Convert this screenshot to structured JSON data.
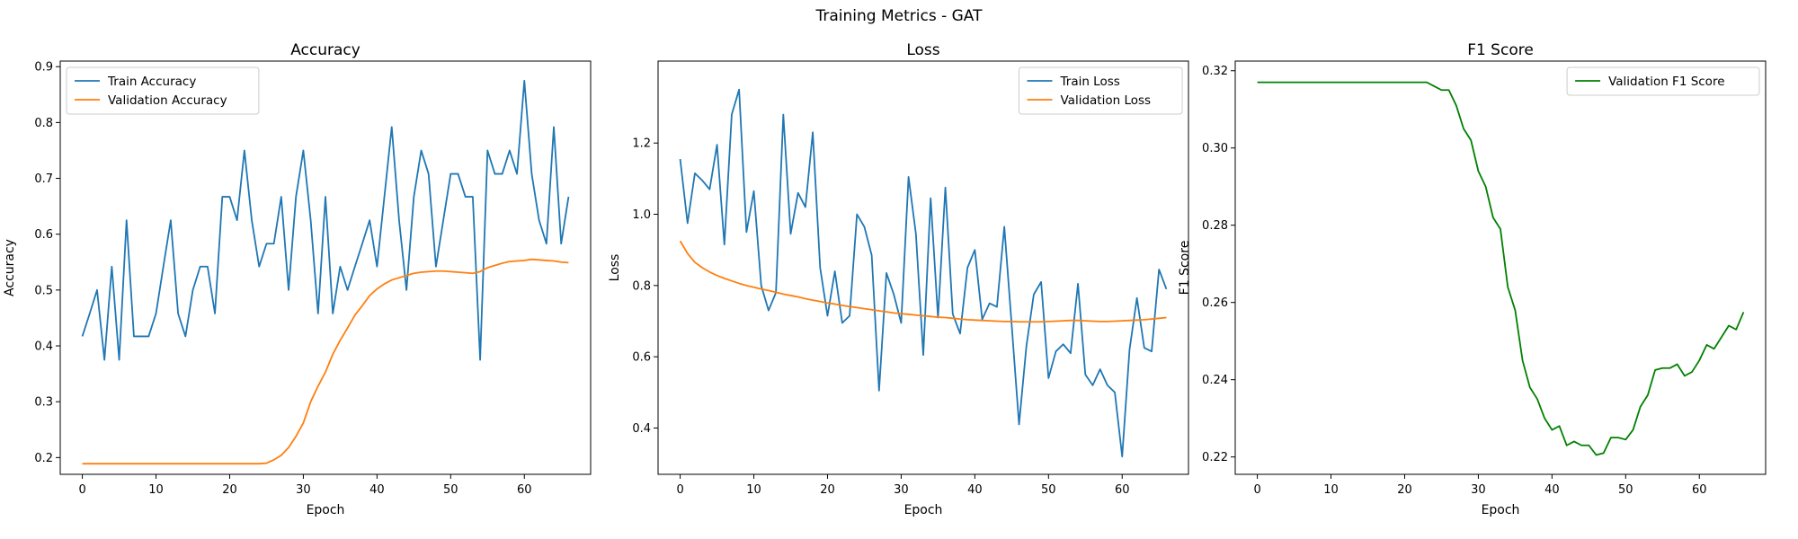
{
  "figure_title": "Training Metrics - GAT",
  "chart_data": [
    {
      "type": "line",
      "title": "Accuracy",
      "xlabel": "Epoch",
      "ylabel": "Accuracy",
      "xlim": [
        -3,
        69
      ],
      "ylim": [
        0.17,
        0.91
      ],
      "xticks": [
        0,
        10,
        20,
        30,
        40,
        50,
        60
      ],
      "yticks": [
        0.2,
        0.3,
        0.4,
        0.5,
        0.6,
        0.7,
        0.8,
        0.9
      ],
      "legend_position": "upper-left",
      "grid": false,
      "series": [
        {
          "name": "Train Accuracy",
          "color": "#1f77b4",
          "x": [
            0,
            1,
            2,
            3,
            4,
            5,
            6,
            7,
            8,
            9,
            10,
            11,
            12,
            13,
            14,
            15,
            16,
            17,
            18,
            19,
            20,
            21,
            22,
            23,
            24,
            25,
            26,
            27,
            28,
            29,
            30,
            31,
            32,
            33,
            34,
            35,
            36,
            37,
            38,
            39,
            40,
            41,
            42,
            43,
            44,
            45,
            46,
            47,
            48,
            49,
            50,
            51,
            52,
            53,
            54,
            55,
            56,
            57,
            58,
            59,
            60,
            61,
            62,
            63,
            64,
            65,
            66
          ],
          "y": [
            0.417,
            0.458,
            0.5,
            0.375,
            0.542,
            0.375,
            0.625,
            0.417,
            0.417,
            0.417,
            0.458,
            0.542,
            0.625,
            0.458,
            0.417,
            0.5,
            0.542,
            0.542,
            0.458,
            0.667,
            0.667,
            0.625,
            0.75,
            0.625,
            0.542,
            0.583,
            0.583,
            0.667,
            0.5,
            0.667,
            0.75,
            0.625,
            0.458,
            0.667,
            0.458,
            0.542,
            0.5,
            0.542,
            0.583,
            0.625,
            0.542,
            0.667,
            0.792,
            0.625,
            0.5,
            0.667,
            0.75,
            0.708,
            0.542,
            0.625,
            0.708,
            0.708,
            0.667,
            0.667,
            0.375,
            0.75,
            0.708,
            0.708,
            0.75,
            0.708,
            0.875,
            0.708,
            0.625,
            0.583,
            0.792,
            0.583,
            0.667
          ]
        },
        {
          "name": "Validation Accuracy",
          "color": "#ff7f0e",
          "x": [
            0,
            1,
            2,
            3,
            4,
            5,
            6,
            7,
            8,
            9,
            10,
            11,
            12,
            13,
            14,
            15,
            16,
            17,
            18,
            19,
            20,
            21,
            22,
            23,
            24,
            25,
            26,
            27,
            28,
            29,
            30,
            31,
            32,
            33,
            34,
            35,
            36,
            37,
            38,
            39,
            40,
            41,
            42,
            43,
            44,
            45,
            46,
            47,
            48,
            49,
            50,
            51,
            52,
            53,
            54,
            55,
            56,
            57,
            58,
            59,
            60,
            61,
            62,
            63,
            64,
            65,
            66
          ],
          "y": [
            0.189,
            0.189,
            0.189,
            0.189,
            0.189,
            0.189,
            0.189,
            0.189,
            0.189,
            0.189,
            0.189,
            0.189,
            0.189,
            0.189,
            0.189,
            0.189,
            0.189,
            0.189,
            0.189,
            0.189,
            0.189,
            0.189,
            0.189,
            0.189,
            0.189,
            0.19,
            0.196,
            0.204,
            0.218,
            0.238,
            0.262,
            0.3,
            0.328,
            0.353,
            0.385,
            0.41,
            0.432,
            0.455,
            0.472,
            0.49,
            0.502,
            0.511,
            0.518,
            0.522,
            0.526,
            0.53,
            0.532,
            0.533,
            0.534,
            0.534,
            0.533,
            0.532,
            0.531,
            0.53,
            0.533,
            0.54,
            0.544,
            0.548,
            0.551,
            0.552,
            0.553,
            0.555,
            0.554,
            0.553,
            0.552,
            0.55,
            0.549
          ]
        }
      ]
    },
    {
      "type": "line",
      "title": "Loss",
      "xlabel": "Epoch",
      "ylabel": "Loss",
      "xlim": [
        -3,
        69
      ],
      "ylim": [
        0.27,
        1.43
      ],
      "xticks": [
        0,
        10,
        20,
        30,
        40,
        50,
        60
      ],
      "yticks": [
        0.4,
        0.6,
        0.8,
        1.0,
        1.2
      ],
      "legend_position": "upper-right",
      "grid": false,
      "series": [
        {
          "name": "Train Loss",
          "color": "#1f77b4",
          "x": [
            0,
            1,
            2,
            3,
            4,
            5,
            6,
            7,
            8,
            9,
            10,
            11,
            12,
            13,
            14,
            15,
            16,
            17,
            18,
            19,
            20,
            21,
            22,
            23,
            24,
            25,
            26,
            27,
            28,
            29,
            30,
            31,
            32,
            33,
            34,
            35,
            36,
            37,
            38,
            39,
            40,
            41,
            42,
            43,
            44,
            45,
            46,
            47,
            48,
            49,
            50,
            51,
            52,
            53,
            54,
            55,
            56,
            57,
            58,
            59,
            60,
            61,
            62,
            63,
            64,
            65,
            66
          ],
          "y": [
            1.155,
            0.975,
            1.115,
            1.095,
            1.07,
            1.195,
            0.915,
            1.28,
            1.35,
            0.95,
            1.065,
            0.8,
            0.73,
            0.78,
            1.28,
            0.945,
            1.06,
            1.02,
            1.23,
            0.85,
            0.715,
            0.84,
            0.695,
            0.715,
            1.0,
            0.965,
            0.885,
            0.505,
            0.835,
            0.775,
            0.695,
            1.105,
            0.945,
            0.605,
            1.045,
            0.71,
            1.075,
            0.72,
            0.665,
            0.85,
            0.9,
            0.705,
            0.75,
            0.74,
            0.965,
            0.69,
            0.41,
            0.63,
            0.775,
            0.81,
            0.54,
            0.615,
            0.635,
            0.61,
            0.805,
            0.55,
            0.52,
            0.565,
            0.52,
            0.5,
            0.32,
            0.62,
            0.765,
            0.625,
            0.615,
            0.845,
            0.79
          ]
        },
        {
          "name": "Validation Loss",
          "color": "#ff7f0e",
          "x": [
            0,
            1,
            2,
            3,
            4,
            5,
            6,
            7,
            8,
            9,
            10,
            11,
            12,
            13,
            14,
            15,
            16,
            17,
            18,
            19,
            20,
            21,
            22,
            23,
            24,
            25,
            26,
            27,
            28,
            29,
            30,
            31,
            32,
            33,
            34,
            35,
            36,
            37,
            38,
            39,
            40,
            41,
            42,
            43,
            44,
            45,
            46,
            47,
            48,
            49,
            50,
            51,
            52,
            53,
            54,
            55,
            56,
            57,
            58,
            59,
            60,
            61,
            62,
            63,
            64,
            65,
            66
          ],
          "y": [
            0.925,
            0.89,
            0.865,
            0.85,
            0.838,
            0.828,
            0.82,
            0.813,
            0.806,
            0.8,
            0.795,
            0.79,
            0.786,
            0.781,
            0.776,
            0.772,
            0.768,
            0.763,
            0.759,
            0.755,
            0.751,
            0.748,
            0.744,
            0.741,
            0.738,
            0.735,
            0.732,
            0.729,
            0.726,
            0.723,
            0.721,
            0.719,
            0.717,
            0.715,
            0.713,
            0.711,
            0.71,
            0.708,
            0.706,
            0.704,
            0.703,
            0.702,
            0.701,
            0.7,
            0.699,
            0.699,
            0.698,
            0.698,
            0.698,
            0.698,
            0.699,
            0.7,
            0.701,
            0.702,
            0.702,
            0.701,
            0.7,
            0.699,
            0.699,
            0.7,
            0.701,
            0.702,
            0.703,
            0.704,
            0.706,
            0.708,
            0.71
          ]
        }
      ]
    },
    {
      "type": "line",
      "title": "F1 Score",
      "xlabel": "Epoch",
      "ylabel": "F1 Score",
      "xlim": [
        -3,
        69
      ],
      "ylim": [
        0.2155,
        0.3225
      ],
      "xticks": [
        0,
        10,
        20,
        30,
        40,
        50,
        60
      ],
      "yticks": [
        0.22,
        0.24,
        0.26,
        0.28,
        0.3,
        0.32
      ],
      "legend_position": "upper-right",
      "grid": false,
      "series": [
        {
          "name": "Validation F1 Score",
          "color": "#008000",
          "x": [
            0,
            1,
            2,
            3,
            4,
            5,
            6,
            7,
            8,
            9,
            10,
            11,
            12,
            13,
            14,
            15,
            16,
            17,
            18,
            19,
            20,
            21,
            22,
            23,
            24,
            25,
            26,
            27,
            28,
            29,
            30,
            31,
            32,
            33,
            34,
            35,
            36,
            37,
            38,
            39,
            40,
            41,
            42,
            43,
            44,
            45,
            46,
            47,
            48,
            49,
            50,
            51,
            52,
            53,
            54,
            55,
            56,
            57,
            58,
            59,
            60,
            61,
            62,
            63,
            64,
            65,
            66
          ],
          "y": [
            0.317,
            0.317,
            0.317,
            0.317,
            0.317,
            0.317,
            0.317,
            0.317,
            0.317,
            0.317,
            0.317,
            0.317,
            0.317,
            0.317,
            0.317,
            0.317,
            0.317,
            0.317,
            0.317,
            0.317,
            0.317,
            0.317,
            0.317,
            0.317,
            0.316,
            0.315,
            0.315,
            0.311,
            0.305,
            0.302,
            0.294,
            0.29,
            0.282,
            0.279,
            0.264,
            0.258,
            0.245,
            0.238,
            0.235,
            0.23,
            0.227,
            0.228,
            0.223,
            0.224,
            0.223,
            0.223,
            0.2205,
            0.221,
            0.225,
            0.225,
            0.2245,
            0.227,
            0.233,
            0.236,
            0.2425,
            0.243,
            0.243,
            0.244,
            0.241,
            0.242,
            0.245,
            0.249,
            0.248,
            0.251,
            0.254,
            0.253,
            0.2575
          ]
        }
      ]
    }
  ]
}
